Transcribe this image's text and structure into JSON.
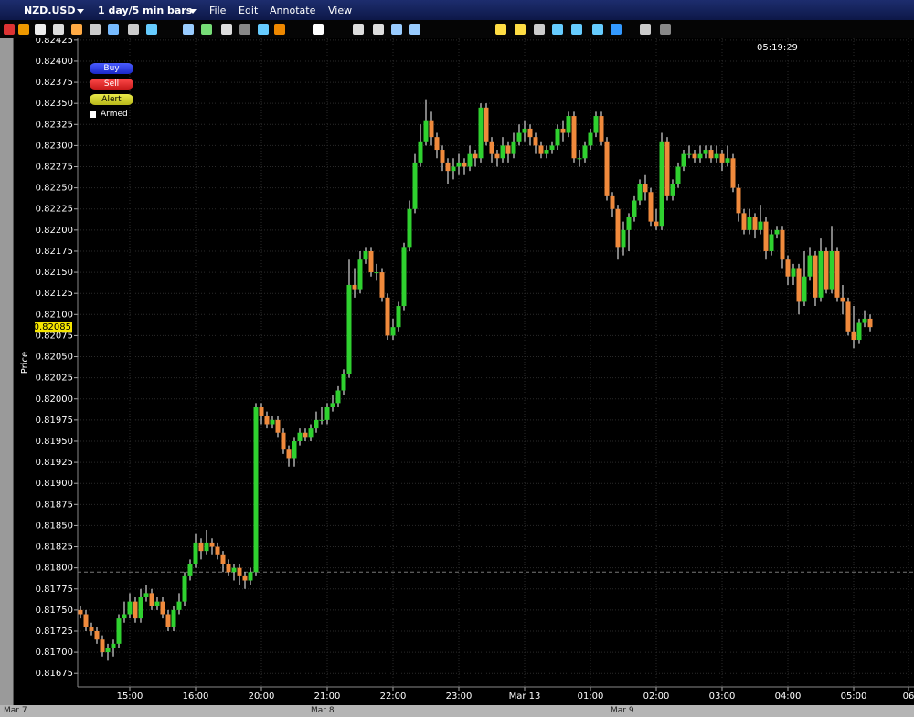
{
  "window": {
    "symbol": "NZD.USD",
    "period": "1 day/5 min bars",
    "menu": [
      "File",
      "Edit",
      "Annotate",
      "View"
    ],
    "order_buttons": [
      "Buy",
      "Sell",
      "Alert"
    ],
    "armed": "Armed",
    "clock": "05:19:29",
    "date_strip": [
      "Mar 7",
      "Mar 8",
      "Mar 9"
    ]
  },
  "chart_data": {
    "type": "candlestick",
    "y_label": "Price",
    "up_color": "#2fd12f",
    "down_color": "#f08a3c",
    "ylim": [
      0.81659,
      0.82427
    ],
    "xlim": [
      -0.5,
      152
    ],
    "grid": true,
    "last_price": 0.82085,
    "ref_line": 0.81795,
    "yticks": [
      {
        "value": 0.81675,
        "label": "0.81675"
      },
      {
        "value": 0.817,
        "label": "0.81700"
      },
      {
        "value": 0.81725,
        "label": "0.81725"
      },
      {
        "value": 0.8175,
        "label": "0.81750"
      },
      {
        "value": 0.81775,
        "label": "0.81775"
      },
      {
        "value": 0.818,
        "label": "0.81800"
      },
      {
        "value": 0.81825,
        "label": "0.81825"
      },
      {
        "value": 0.8185,
        "label": "0.81850"
      },
      {
        "value": 0.81875,
        "label": "0.81875"
      },
      {
        "value": 0.819,
        "label": "0.81900"
      },
      {
        "value": 0.81925,
        "label": "0.81925"
      },
      {
        "value": 0.8195,
        "label": "0.81950"
      },
      {
        "value": 0.81975,
        "label": "0.81975"
      },
      {
        "value": 0.82,
        "label": "0.82000"
      },
      {
        "value": 0.82025,
        "label": "0.82025"
      },
      {
        "value": 0.8205,
        "label": "0.82050"
      },
      {
        "value": 0.82075,
        "label": "0.82075"
      },
      {
        "value": 0.821,
        "label": "0.82100"
      },
      {
        "value": 0.82125,
        "label": "0.82125"
      },
      {
        "value": 0.8215,
        "label": "0.82150"
      },
      {
        "value": 0.82175,
        "label": "0.82175"
      },
      {
        "value": 0.822,
        "label": "0.82200"
      },
      {
        "value": 0.82225,
        "label": "0.82225"
      },
      {
        "value": 0.8225,
        "label": "0.82250"
      },
      {
        "value": 0.82275,
        "label": "0.82275"
      },
      {
        "value": 0.823,
        "label": "0.82300"
      },
      {
        "value": 0.82325,
        "label": "0.82325"
      },
      {
        "value": 0.8235,
        "label": "0.82350"
      },
      {
        "value": 0.82375,
        "label": "0.82375"
      },
      {
        "value": 0.824,
        "label": "0.82400"
      },
      {
        "value": 0.82425,
        "label": "0.82425"
      }
    ],
    "xticks": [
      {
        "value": 9,
        "label": "15:00"
      },
      {
        "value": 21,
        "label": "16:00"
      },
      {
        "value": 33,
        "label": "20:00"
      },
      {
        "value": 45,
        "label": "21:00"
      },
      {
        "value": 57,
        "label": "22:00"
      },
      {
        "value": 69,
        "label": "23:00"
      },
      {
        "value": 81,
        "label": "Mar 13"
      },
      {
        "value": 93,
        "label": "01:00"
      },
      {
        "value": 105,
        "label": "02:00"
      },
      {
        "value": 117,
        "label": "03:00"
      },
      {
        "value": 129,
        "label": "04:00"
      },
      {
        "value": 141,
        "label": "05:00"
      },
      {
        "value": 151,
        "label": "06"
      }
    ],
    "candles": [
      [
        0.8175,
        0.81755,
        0.8174,
        0.81745
      ],
      [
        0.81745,
        0.8175,
        0.81725,
        0.8173
      ],
      [
        0.8173,
        0.81735,
        0.8172,
        0.81725
      ],
      [
        0.81725,
        0.8173,
        0.8171,
        0.81715
      ],
      [
        0.81715,
        0.8172,
        0.81695,
        0.817
      ],
      [
        0.817,
        0.8171,
        0.8169,
        0.81705
      ],
      [
        0.81705,
        0.81715,
        0.81695,
        0.8171
      ],
      [
        0.8171,
        0.81745,
        0.81705,
        0.8174
      ],
      [
        0.8174,
        0.8176,
        0.81735,
        0.81745
      ],
      [
        0.81745,
        0.8177,
        0.8174,
        0.8176
      ],
      [
        0.8176,
        0.81765,
        0.81735,
        0.8174
      ],
      [
        0.8174,
        0.81775,
        0.81735,
        0.81765
      ],
      [
        0.81765,
        0.8178,
        0.8176,
        0.8177
      ],
      [
        0.8177,
        0.81775,
        0.8175,
        0.81755
      ],
      [
        0.81755,
        0.81765,
        0.8175,
        0.8176
      ],
      [
        0.8176,
        0.81765,
        0.8174,
        0.81745
      ],
      [
        0.81745,
        0.8175,
        0.81725,
        0.8173
      ],
      [
        0.8173,
        0.81755,
        0.81725,
        0.8175
      ],
      [
        0.8175,
        0.8177,
        0.81745,
        0.8176
      ],
      [
        0.8176,
        0.81795,
        0.81755,
        0.8179
      ],
      [
        0.8179,
        0.8181,
        0.81785,
        0.81805
      ],
      [
        0.81805,
        0.8184,
        0.818,
        0.8183
      ],
      [
        0.8183,
        0.81835,
        0.8181,
        0.8182
      ],
      [
        0.8182,
        0.81845,
        0.81815,
        0.8183
      ],
      [
        0.8183,
        0.81835,
        0.81815,
        0.81825
      ],
      [
        0.81825,
        0.8183,
        0.8181,
        0.81815
      ],
      [
        0.81815,
        0.8182,
        0.81795,
        0.81805
      ],
      [
        0.81805,
        0.8181,
        0.8179,
        0.81795
      ],
      [
        0.81795,
        0.81805,
        0.81785,
        0.818
      ],
      [
        0.818,
        0.81805,
        0.8178,
        0.8179
      ],
      [
        0.8179,
        0.81795,
        0.81775,
        0.81785
      ],
      [
        0.81785,
        0.818,
        0.8178,
        0.81795
      ],
      [
        0.81795,
        0.81995,
        0.8179,
        0.8199
      ],
      [
        0.8199,
        0.81995,
        0.8197,
        0.8198
      ],
      [
        0.8198,
        0.81985,
        0.81965,
        0.8197
      ],
      [
        0.8197,
        0.8198,
        0.81965,
        0.81975
      ],
      [
        0.81975,
        0.8198,
        0.81955,
        0.8196
      ],
      [
        0.8196,
        0.81965,
        0.81935,
        0.8194
      ],
      [
        0.8194,
        0.81945,
        0.8192,
        0.8193
      ],
      [
        0.8193,
        0.81955,
        0.8192,
        0.8195
      ],
      [
        0.8195,
        0.81965,
        0.81945,
        0.8196
      ],
      [
        0.8196,
        0.81965,
        0.8195,
        0.81955
      ],
      [
        0.81955,
        0.8197,
        0.8195,
        0.81965
      ],
      [
        0.81965,
        0.81985,
        0.8196,
        0.81975
      ],
      [
        0.81975,
        0.8199,
        0.8197,
        0.81975
      ],
      [
        0.81975,
        0.81995,
        0.8197,
        0.8199
      ],
      [
        0.8199,
        0.82005,
        0.81985,
        0.81995
      ],
      [
        0.81995,
        0.82015,
        0.8199,
        0.8201
      ],
      [
        0.8201,
        0.82035,
        0.82005,
        0.8203
      ],
      [
        0.8203,
        0.82165,
        0.82025,
        0.82135
      ],
      [
        0.82135,
        0.82155,
        0.8212,
        0.8213
      ],
      [
        0.8213,
        0.82175,
        0.82125,
        0.82165
      ],
      [
        0.82165,
        0.8218,
        0.8216,
        0.82175
      ],
      [
        0.82175,
        0.8218,
        0.82145,
        0.8215
      ],
      [
        0.8215,
        0.8216,
        0.8214,
        0.8215
      ],
      [
        0.8215,
        0.82155,
        0.82115,
        0.8212
      ],
      [
        0.8212,
        0.82125,
        0.8207,
        0.82075
      ],
      [
        0.82075,
        0.82095,
        0.8207,
        0.82085
      ],
      [
        0.82085,
        0.82115,
        0.8208,
        0.8211
      ],
      [
        0.8211,
        0.82185,
        0.82105,
        0.8218
      ],
      [
        0.8218,
        0.82235,
        0.82175,
        0.82225
      ],
      [
        0.82225,
        0.8229,
        0.8222,
        0.8228
      ],
      [
        0.8228,
        0.82325,
        0.82275,
        0.82305
      ],
      [
        0.82305,
        0.82355,
        0.823,
        0.8233
      ],
      [
        0.8233,
        0.8234,
        0.823,
        0.8231
      ],
      [
        0.8231,
        0.82315,
        0.82285,
        0.82295
      ],
      [
        0.82295,
        0.823,
        0.8227,
        0.8228
      ],
      [
        0.8228,
        0.82285,
        0.82255,
        0.8227
      ],
      [
        0.8227,
        0.82285,
        0.8226,
        0.82275
      ],
      [
        0.82275,
        0.8229,
        0.82265,
        0.8228
      ],
      [
        0.8228,
        0.82285,
        0.82265,
        0.82275
      ],
      [
        0.82275,
        0.823,
        0.8227,
        0.8229
      ],
      [
        0.8229,
        0.82295,
        0.82275,
        0.82285
      ],
      [
        0.82285,
        0.8235,
        0.8228,
        0.82345
      ],
      [
        0.82345,
        0.8235,
        0.823,
        0.82305
      ],
      [
        0.82305,
        0.8231,
        0.8228,
        0.8229
      ],
      [
        0.8229,
        0.82295,
        0.82275,
        0.82285
      ],
      [
        0.82285,
        0.8231,
        0.8228,
        0.823
      ],
      [
        0.823,
        0.82305,
        0.8228,
        0.8229
      ],
      [
        0.8229,
        0.82315,
        0.82285,
        0.82305
      ],
      [
        0.82305,
        0.82325,
        0.823,
        0.82315
      ],
      [
        0.82315,
        0.8233,
        0.82305,
        0.8232
      ],
      [
        0.8232,
        0.82325,
        0.823,
        0.8231
      ],
      [
        0.8231,
        0.82315,
        0.8229,
        0.823
      ],
      [
        0.823,
        0.82305,
        0.82285,
        0.8229
      ],
      [
        0.8229,
        0.823,
        0.82285,
        0.82295
      ],
      [
        0.82295,
        0.82305,
        0.8229,
        0.823
      ],
      [
        0.823,
        0.82325,
        0.82295,
        0.8232
      ],
      [
        0.8232,
        0.8233,
        0.82305,
        0.82315
      ],
      [
        0.82315,
        0.8234,
        0.8231,
        0.82335
      ],
      [
        0.82335,
        0.8234,
        0.8228,
        0.82285
      ],
      [
        0.82285,
        0.82295,
        0.82275,
        0.82285
      ],
      [
        0.82285,
        0.82305,
        0.8228,
        0.823
      ],
      [
        0.823,
        0.8232,
        0.82295,
        0.82315
      ],
      [
        0.82315,
        0.8234,
        0.8231,
        0.82335
      ],
      [
        0.82335,
        0.8234,
        0.823,
        0.82305
      ],
      [
        0.82305,
        0.8231,
        0.82235,
        0.8224
      ],
      [
        0.8224,
        0.82245,
        0.82215,
        0.82225
      ],
      [
        0.82225,
        0.8223,
        0.82165,
        0.8218
      ],
      [
        0.8218,
        0.8221,
        0.8217,
        0.822
      ],
      [
        0.822,
        0.8222,
        0.82175,
        0.82215
      ],
      [
        0.82215,
        0.8224,
        0.8221,
        0.82235
      ],
      [
        0.82235,
        0.8226,
        0.8223,
        0.82255
      ],
      [
        0.82255,
        0.82265,
        0.82235,
        0.82245
      ],
      [
        0.82245,
        0.8225,
        0.82205,
        0.8221
      ],
      [
        0.8221,
        0.82225,
        0.822,
        0.82205
      ],
      [
        0.82205,
        0.82315,
        0.822,
        0.82305
      ],
      [
        0.82305,
        0.8231,
        0.82235,
        0.8224
      ],
      [
        0.8224,
        0.8226,
        0.82235,
        0.82255
      ],
      [
        0.82255,
        0.8228,
        0.8225,
        0.82275
      ],
      [
        0.82275,
        0.82295,
        0.8227,
        0.8229
      ],
      [
        0.8229,
        0.823,
        0.82285,
        0.8229
      ],
      [
        0.8229,
        0.82295,
        0.8228,
        0.82285
      ],
      [
        0.82285,
        0.823,
        0.8228,
        0.8229
      ],
      [
        0.8229,
        0.823,
        0.82285,
        0.82295
      ],
      [
        0.82295,
        0.823,
        0.8228,
        0.82285
      ],
      [
        0.82285,
        0.823,
        0.8228,
        0.8229
      ],
      [
        0.8229,
        0.82295,
        0.8227,
        0.8228
      ],
      [
        0.8228,
        0.823,
        0.82275,
        0.82285
      ],
      [
        0.82285,
        0.8229,
        0.82245,
        0.8225
      ],
      [
        0.8225,
        0.82255,
        0.8221,
        0.8222
      ],
      [
        0.8222,
        0.82225,
        0.82195,
        0.822
      ],
      [
        0.822,
        0.82225,
        0.82195,
        0.82215
      ],
      [
        0.82215,
        0.8222,
        0.8219,
        0.822
      ],
      [
        0.822,
        0.8223,
        0.82195,
        0.8221
      ],
      [
        0.8221,
        0.82215,
        0.82165,
        0.82175
      ],
      [
        0.82175,
        0.822,
        0.8217,
        0.82195
      ],
      [
        0.82195,
        0.82205,
        0.8219,
        0.822
      ],
      [
        0.822,
        0.82205,
        0.82155,
        0.82165
      ],
      [
        0.82165,
        0.8217,
        0.82135,
        0.82145
      ],
      [
        0.82145,
        0.8216,
        0.82135,
        0.82155
      ],
      [
        0.82155,
        0.8216,
        0.821,
        0.82115
      ],
      [
        0.82115,
        0.82175,
        0.8211,
        0.82145
      ],
      [
        0.82145,
        0.8218,
        0.8214,
        0.8217
      ],
      [
        0.8217,
        0.82175,
        0.8211,
        0.8212
      ],
      [
        0.8212,
        0.8219,
        0.82115,
        0.82175
      ],
      [
        0.82175,
        0.8218,
        0.82125,
        0.8213
      ],
      [
        0.8213,
        0.82205,
        0.82125,
        0.82175
      ],
      [
        0.82175,
        0.8218,
        0.82115,
        0.8212
      ],
      [
        0.8212,
        0.82135,
        0.821,
        0.82115
      ],
      [
        0.82115,
        0.8212,
        0.82075,
        0.8208
      ],
      [
        0.8208,
        0.8211,
        0.8206,
        0.8207
      ],
      [
        0.8207,
        0.82095,
        0.82065,
        0.8209
      ],
      [
        0.8209,
        0.82105,
        0.82085,
        0.82095
      ],
      [
        0.82095,
        0.821,
        0.8208,
        0.82085
      ]
    ]
  }
}
